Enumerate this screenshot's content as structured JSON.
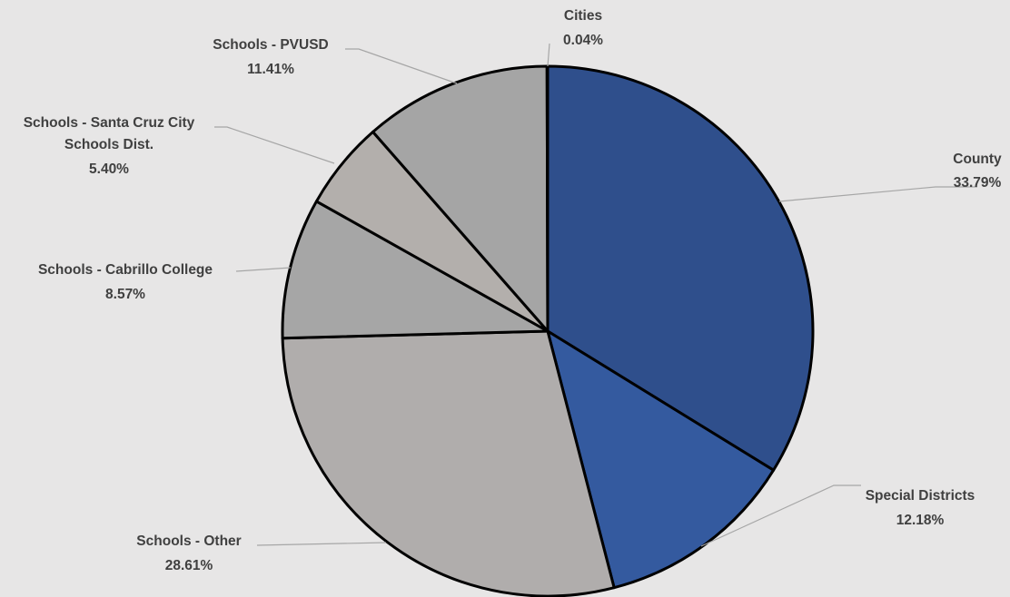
{
  "chart_data": {
    "type": "pie",
    "title": "",
    "slices": [
      {
        "name": "County",
        "value": 33.79,
        "label_value": "33.79%",
        "color": "#2f4f8c"
      },
      {
        "name": "Special Districts",
        "value": 12.18,
        "label_value": "12.18%",
        "color": "#345a9f"
      },
      {
        "name": "Schools - Other",
        "value": 28.61,
        "label_value": "28.61%",
        "color": "#b0adac"
      },
      {
        "name": "Schools - Cabrillo College",
        "value": 8.57,
        "label_value": "8.57%",
        "color": "#a6a6a6"
      },
      {
        "name": "Schools - Santa Cruz City Schools Dist.",
        "value": 5.4,
        "label_value": "5.40%",
        "color": "#b3afac"
      },
      {
        "name": "Schools - PVUSD",
        "value": 11.41,
        "label_value": "11.41%",
        "color": "#a5a5a5"
      },
      {
        "name": "Cities",
        "value": 0.04,
        "label_value": "0.04%",
        "color": "#4472c4"
      }
    ],
    "legend": "none",
    "data_labels": "outside-with-leader-lines",
    "start_angle": "12 o'clock",
    "direction": "clockwise"
  }
}
